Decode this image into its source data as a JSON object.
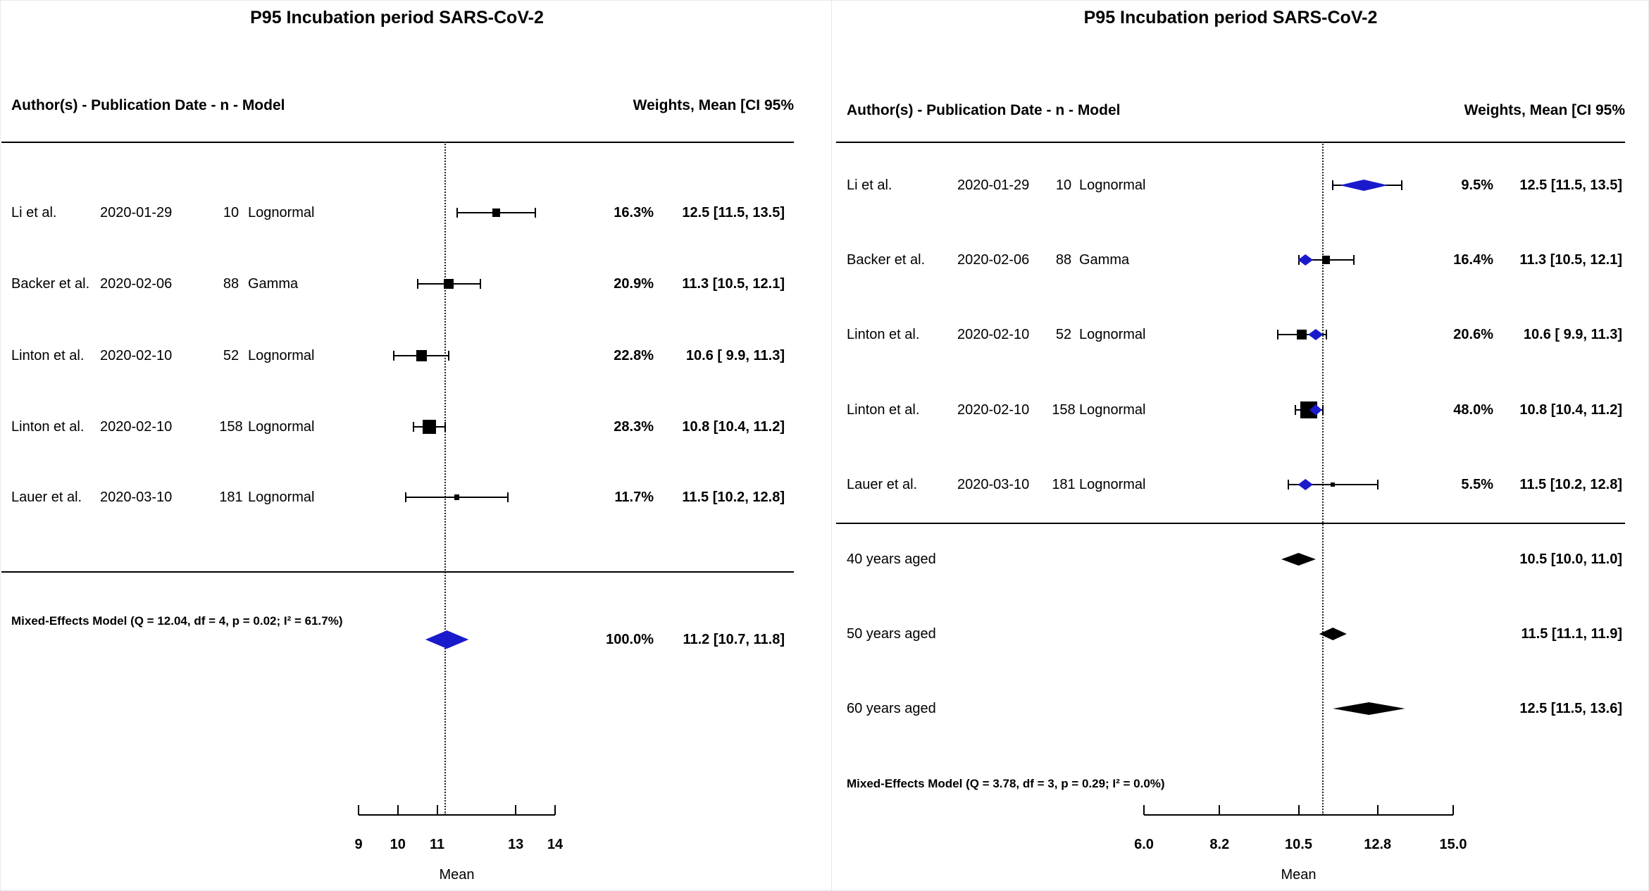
{
  "colors": {
    "diamond_blue": "#1a1acd",
    "marker_black": "#000000"
  },
  "chart_data": [
    {
      "type": "forest",
      "panel": "overall-meta-analysis",
      "title": "P95 Incubation period SARS-CoV-2",
      "col_header": "Author(s) - Publication Date - n - Model",
      "value_header": "Weights, Mean [CI 95%",
      "xlabel": "Mean",
      "x_min": 9,
      "x_max": 14,
      "ref_line": 11.2,
      "ticks": [
        {
          "v": 9,
          "t": "9"
        },
        {
          "v": 10,
          "t": "10"
        },
        {
          "v": 11,
          "t": "11"
        },
        {
          "v": 13,
          "t": "13"
        },
        {
          "v": 14,
          "t": "14"
        }
      ],
      "rows": [
        {
          "author": "Li et al.",
          "date": "2020-01-29",
          "n": "10",
          "model": "Lognormal",
          "weight": "16.3%",
          "weight_val": 16.3,
          "mean": 12.5,
          "lo": 11.5,
          "hi": 13.5,
          "ci": "12.5 [11.5, 13.5]"
        },
        {
          "author": "Backer et al.",
          "date": "2020-02-06",
          "n": "88",
          "model": "Gamma",
          "weight": "20.9%",
          "weight_val": 20.9,
          "mean": 11.3,
          "lo": 10.5,
          "hi": 12.1,
          "ci": "11.3 [10.5, 12.1]"
        },
        {
          "author": "Linton et al.",
          "date": "2020-02-10",
          "n": "52",
          "model": "Lognormal",
          "weight": "22.8%",
          "weight_val": 22.8,
          "mean": 10.6,
          "lo": 9.9,
          "hi": 11.3,
          "ci": "10.6 [ 9.9, 11.3]"
        },
        {
          "author": "Linton et al.",
          "date": "2020-02-10",
          "n": "158",
          "model": "Lognormal",
          "weight": "28.3%",
          "weight_val": 28.3,
          "mean": 10.8,
          "lo": 10.4,
          "hi": 11.2,
          "ci": "10.8 [10.4, 11.2]"
        },
        {
          "author": "Lauer et al.",
          "date": "2020-03-10",
          "n": "181",
          "model": "Lognormal",
          "weight": "11.7%",
          "weight_val": 11.7,
          "mean": 11.5,
          "lo": 10.2,
          "hi": 12.8,
          "ci": "11.5 [10.2, 12.8]"
        }
      ],
      "summary": {
        "label": "Mixed-Effects Model (Q = 12.04, df = 4, p = 0.02; I² = 61.7%)",
        "weight": "100.0%",
        "weight_val": 100.0,
        "mean": 11.2,
        "lo": 10.7,
        "hi": 11.8,
        "ci": "11.2 [10.7, 11.8]"
      }
    },
    {
      "type": "forest",
      "panel": "meta-regression-by-age",
      "title": "P95 Incubation period SARS-CoV-2",
      "col_header": "Author(s) - Publication Date - n - Model",
      "value_header": "Weights, Mean [CI 95%",
      "xlabel": "Mean",
      "x_min": 6,
      "x_max": 15,
      "ref_line": 11.2,
      "ticks": [
        {
          "v": 6.0,
          "t": "6.0"
        },
        {
          "v": 8.2,
          "t": "8.2"
        },
        {
          "v": 10.5,
          "t": "10.5"
        },
        {
          "v": 12.8,
          "t": "12.8"
        },
        {
          "v": 15.0,
          "t": "15.0"
        }
      ],
      "rows": [
        {
          "author": "Li et al.",
          "date": "2020-01-29",
          "n": "10",
          "model": "Lognormal",
          "weight": "9.5%",
          "weight_val": 9.5,
          "mean": 12.5,
          "lo": 11.5,
          "hi": 13.5,
          "ci": "12.5 [11.5, 13.5]",
          "fit": {
            "c": 12.4,
            "half": 0.7
          }
        },
        {
          "author": "Backer et al.",
          "date": "2020-02-06",
          "n": "88",
          "model": "Gamma",
          "weight": "16.4%",
          "weight_val": 16.4,
          "mean": 11.3,
          "lo": 10.5,
          "hi": 12.1,
          "ci": "11.3 [10.5, 12.1]",
          "fit": {
            "c": 10.7,
            "half": 0.22
          }
        },
        {
          "author": "Linton et al.",
          "date": "2020-02-10",
          "n": "52",
          "model": "Lognormal",
          "weight": "20.6%",
          "weight_val": 20.6,
          "mean": 10.6,
          "lo": 9.9,
          "hi": 11.3,
          "ci": "10.6 [ 9.9, 11.3]",
          "fit": {
            "c": 11.0,
            "half": 0.22
          }
        },
        {
          "author": "Linton et al.",
          "date": "2020-02-10",
          "n": "158",
          "model": "Lognormal",
          "weight": "48.0%",
          "weight_val": 48.0,
          "mean": 10.8,
          "lo": 10.4,
          "hi": 11.2,
          "ci": "10.8 [10.4, 11.2]",
          "fit": {
            "c": 11.0,
            "half": 0.18
          }
        },
        {
          "author": "Lauer et al.",
          "date": "2020-03-10",
          "n": "181",
          "model": "Lognormal",
          "weight": "5.5%",
          "weight_val": 5.5,
          "mean": 11.5,
          "lo": 10.2,
          "hi": 12.8,
          "ci": "11.5 [10.2, 12.8]",
          "fit": {
            "c": 10.7,
            "half": 0.22
          }
        }
      ],
      "predictions": [
        {
          "label": "40 years aged",
          "mean": 10.5,
          "lo": 10.0,
          "hi": 11.0,
          "ci": "10.5 [10.0, 11.0]"
        },
        {
          "label": "50 years aged",
          "mean": 11.5,
          "lo": 11.1,
          "hi": 11.9,
          "ci": "11.5 [11.1, 11.9]"
        },
        {
          "label": "60 years aged",
          "mean": 12.5,
          "lo": 11.5,
          "hi": 13.6,
          "ci": "12.5 [11.5, 13.6]"
        }
      ],
      "summary": {
        "label": "Mixed-Effects Model (Q = 3.78, df = 3, p = 0.29; I² = 0.0%)"
      }
    }
  ]
}
